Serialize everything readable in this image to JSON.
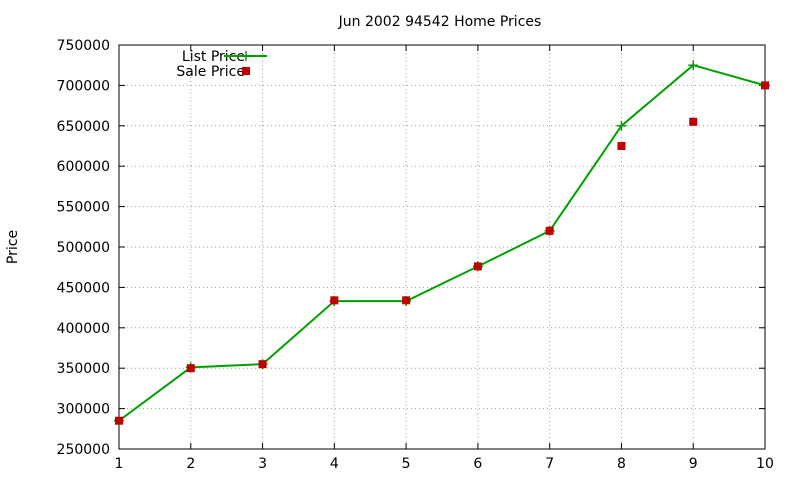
{
  "chart_data": {
    "type": "line",
    "title": "Jun 2002 94542 Home Prices",
    "xlabel": "",
    "ylabel": "Price",
    "x": [
      1,
      2,
      3,
      4,
      5,
      6,
      7,
      8,
      9,
      10
    ],
    "xlim": [
      1,
      10
    ],
    "ylim": [
      250000,
      750000
    ],
    "yticks": [
      250000,
      300000,
      350000,
      400000,
      450000,
      500000,
      550000,
      600000,
      650000,
      700000,
      750000
    ],
    "xticks": [
      1,
      2,
      3,
      4,
      5,
      6,
      7,
      8,
      9,
      10
    ],
    "grid": true,
    "legend_position": "top-left",
    "series": [
      {
        "name": "List Price",
        "style": "linespoints",
        "marker": "plus",
        "color": "#00a000",
        "values": [
          285000,
          351000,
          355000,
          433000,
          433000,
          476000,
          520000,
          650000,
          725000,
          700000
        ]
      },
      {
        "name": "Sale Price",
        "style": "points",
        "marker": "square",
        "color": "#c00000",
        "values": [
          285000,
          350000,
          355000,
          434000,
          434000,
          476000,
          520000,
          625000,
          655000,
          700000
        ]
      }
    ]
  }
}
